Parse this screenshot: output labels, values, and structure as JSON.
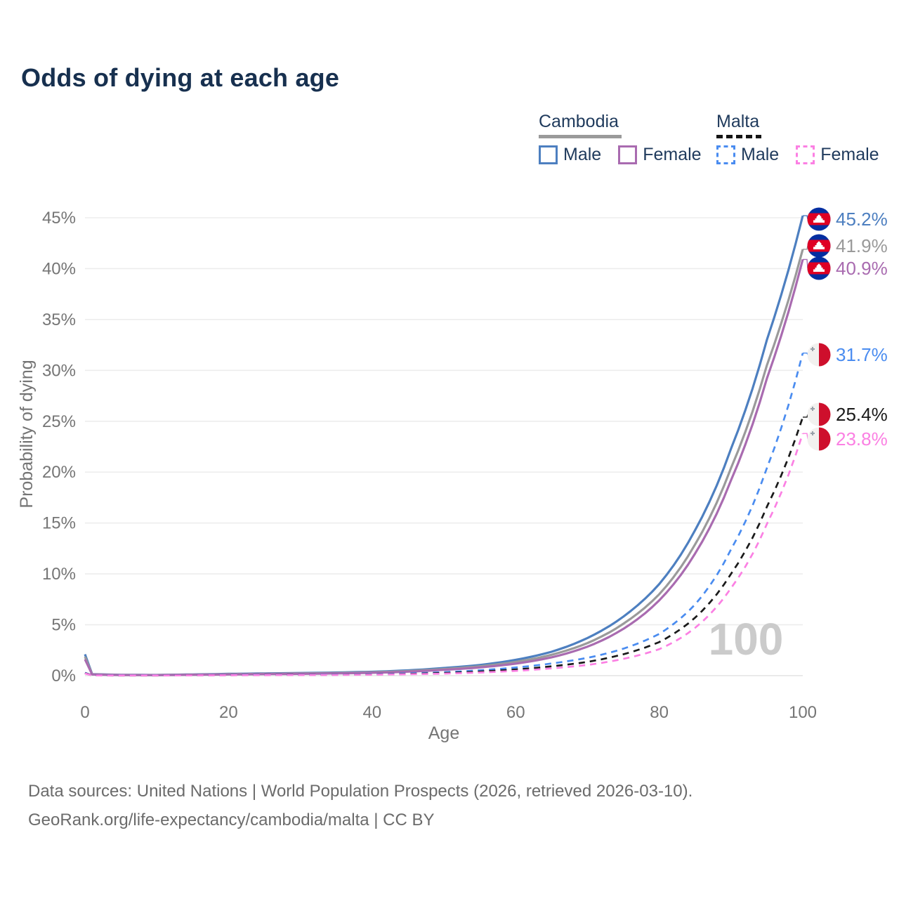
{
  "title": "Odds of dying at each age",
  "legend": {
    "groups": [
      {
        "label": "Cambodia",
        "line_style": "solid",
        "underline_color": "#9a9a9a",
        "items": [
          {
            "label": "Male",
            "color": "#4d7fc0"
          },
          {
            "label": "Female",
            "color": "#a96bb0"
          }
        ]
      },
      {
        "label": "Malta",
        "line_style": "dashed",
        "underline_color": "#141414",
        "items": [
          {
            "label": "Male",
            "color": "#4a8cf0"
          },
          {
            "label": "Female",
            "color": "#fb80e3"
          }
        ]
      }
    ]
  },
  "chart_data": {
    "type": "line",
    "title": "Odds of dying at each age",
    "xlabel": "Age",
    "ylabel": "Probability of dying",
    "xlim": [
      0,
      100
    ],
    "ylim": [
      0,
      45.5
    ],
    "x_ticks": [
      0,
      20,
      40,
      60,
      80,
      100
    ],
    "y_ticks": [
      0,
      5,
      10,
      15,
      20,
      25,
      30,
      35,
      40,
      45
    ],
    "y_tick_suffix": "%",
    "grid": "horizontal",
    "legend_position": "top-right",
    "watermark": "100",
    "ages": [
      0,
      1,
      5,
      10,
      15,
      20,
      25,
      30,
      35,
      40,
      45,
      50,
      55,
      60,
      65,
      70,
      75,
      80,
      85,
      90,
      95,
      100
    ],
    "series": [
      {
        "name": "Cambodia Male",
        "country": "cambodia",
        "sex": "male",
        "color": "#4d7fc0",
        "dashed": false,
        "end_label": "45.2%",
        "values": [
          2.1,
          0.15,
          0.08,
          0.07,
          0.12,
          0.18,
          0.22,
          0.26,
          0.31,
          0.38,
          0.52,
          0.75,
          1.05,
          1.55,
          2.35,
          3.7,
          5.8,
          9.0,
          14.3,
          22.3,
          33.0,
          45.2
        ]
      },
      {
        "name": "Cambodia Both sexes",
        "country": "cambodia",
        "sex": "both",
        "color": "#9a9a9a",
        "dashed": false,
        "end_label": "41.9%",
        "values": [
          1.85,
          0.13,
          0.07,
          0.06,
          0.1,
          0.15,
          0.18,
          0.22,
          0.26,
          0.33,
          0.45,
          0.65,
          0.92,
          1.35,
          2.05,
          3.2,
          5.1,
          8.0,
          12.9,
          20.4,
          30.5,
          41.9
        ]
      },
      {
        "name": "Cambodia Female",
        "country": "cambodia",
        "sex": "female",
        "color": "#a96bb0",
        "dashed": false,
        "end_label": "40.9%",
        "values": [
          1.6,
          0.12,
          0.06,
          0.05,
          0.09,
          0.12,
          0.15,
          0.18,
          0.22,
          0.28,
          0.39,
          0.57,
          0.81,
          1.18,
          1.8,
          2.85,
          4.6,
          7.4,
          12.0,
          19.2,
          29.2,
          40.9
        ]
      },
      {
        "name": "Malta Male",
        "country": "malta",
        "sex": "male",
        "color": "#4a8cf0",
        "dashed": true,
        "end_label": "31.7%",
        "values": [
          0.28,
          0.03,
          0.02,
          0.02,
          0.05,
          0.07,
          0.08,
          0.09,
          0.11,
          0.15,
          0.22,
          0.34,
          0.53,
          0.8,
          1.2,
          1.75,
          2.65,
          4.1,
          7.0,
          12.4,
          20.4,
          31.7
        ]
      },
      {
        "name": "Malta Both sexes",
        "country": "malta",
        "sex": "both",
        "color": "#1a1a1a",
        "dashed": true,
        "end_label": "25.4%",
        "values": [
          0.25,
          0.025,
          0.015,
          0.015,
          0.04,
          0.05,
          0.06,
          0.07,
          0.09,
          0.12,
          0.17,
          0.26,
          0.4,
          0.61,
          0.92,
          1.35,
          2.1,
          3.3,
          5.7,
          10.0,
          16.6,
          25.4
        ]
      },
      {
        "name": "Malta Female",
        "country": "malta",
        "sex": "female",
        "color": "#fb80e3",
        "dashed": true,
        "end_label": "23.8%",
        "values": [
          0.22,
          0.02,
          0.013,
          0.012,
          0.03,
          0.04,
          0.05,
          0.06,
          0.07,
          0.1,
          0.14,
          0.2,
          0.31,
          0.47,
          0.72,
          1.05,
          1.65,
          2.6,
          4.7,
          8.6,
          14.9,
          23.8
        ]
      }
    ]
  },
  "footer": {
    "line1": "Data sources: United Nations | World Population Prospects (2026, retrieved 2026-03-10).",
    "line2": "GeoRank.org/life-expectancy/cambodia/malta | CC BY"
  }
}
